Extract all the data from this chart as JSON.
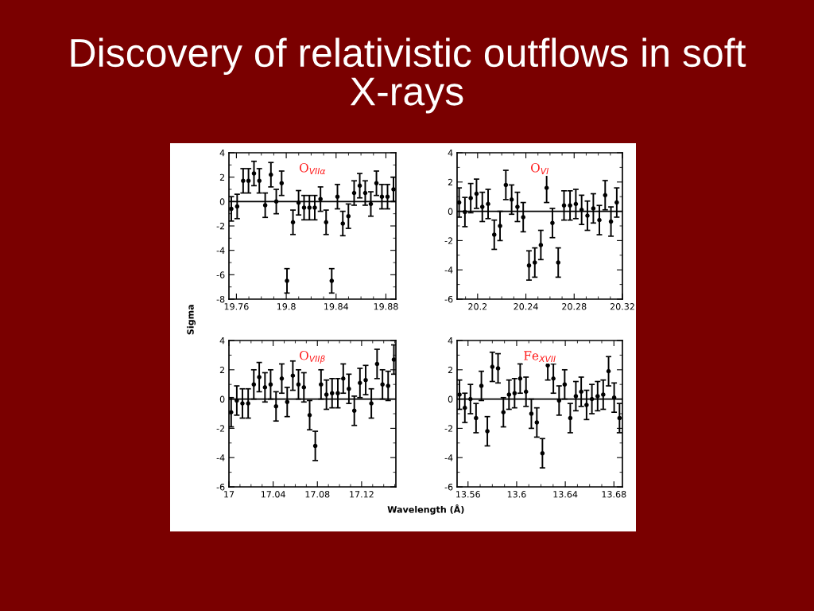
{
  "chart_data": [
    {
      "type": "scatter",
      "title": "Discovery of relativistic outflows in soft X-rays",
      "ylabel": "Sigma",
      "annotations": [
        "O$_{VIIα}$"
      ],
      "xlim": [
        19.754,
        19.888
      ],
      "xticks": [
        19.76,
        19.8,
        19.84,
        19.88
      ],
      "ylim": [
        -8,
        4
      ],
      "yticks": [
        -8,
        -6,
        -4,
        -2,
        0,
        2,
        4
      ],
      "grid": false,
      "marker": "circle",
      "ref_lines": [
        {
          "axis": "y",
          "value": 0,
          "color": "#000000"
        }
      ],
      "series": [
        {
          "color": "#000000",
          "x": [
            19.7559,
            19.7606,
            19.7654,
            19.7697,
            19.7741,
            19.7784,
            19.7831,
            19.7877,
            19.792,
            19.7963,
            19.8006,
            19.8054,
            19.8099,
            19.8143,
            19.8186,
            19.8229,
            19.8275,
            19.832,
            19.8365,
            19.8411,
            19.8454,
            19.8499,
            19.8545,
            19.859,
            19.8634,
            19.8679,
            19.8724,
            19.8768,
            19.8813,
            19.8861
          ],
          "values": [
            -0.6,
            -0.4,
            1.7,
            1.7,
            2.3,
            1.7,
            -0.3,
            2.2,
            0,
            1.5,
            -6.5,
            -1.7,
            -0.1,
            -0.5,
            -0.5,
            -0.5,
            0.2,
            -1.7,
            -6.5,
            0.4,
            -1.8,
            -1.2,
            0.7,
            1.3,
            0.7,
            -0.2,
            1.5,
            0.4,
            0.4,
            1.0
          ],
          "errors": [
            1,
            1,
            1,
            1,
            1,
            1,
            1,
            1,
            1,
            1,
            1,
            1,
            1,
            1,
            1,
            1,
            1,
            1,
            1,
            1,
            1,
            1,
            1,
            1,
            1,
            1,
            1,
            1,
            1,
            1
          ]
        }
      ]
    },
    {
      "type": "scatter",
      "annotations": [
        "O$_{VI}$"
      ],
      "xlim": [
        20.183,
        20.32
      ],
      "xticks": [
        20.2,
        20.24,
        20.28,
        20.32
      ],
      "ylim": [
        -6,
        4
      ],
      "yticks": [
        -6,
        -4,
        -2,
        0,
        2,
        4
      ],
      "grid": false,
      "marker": "circle",
      "ref_lines": [
        {
          "axis": "y",
          "value": 0,
          "color": "#000000"
        }
      ],
      "series": [
        {
          "color": "#000000",
          "x": [
            20.1847,
            20.1895,
            20.1943,
            20.1991,
            20.2039,
            20.2087,
            20.2138,
            20.2186,
            20.2234,
            20.2282,
            20.233,
            20.2378,
            20.2426,
            20.2474,
            20.2524,
            20.2572,
            20.262,
            20.2668,
            20.2716,
            20.2766,
            20.2814,
            20.2862,
            20.291,
            20.2959,
            20.3009,
            20.3057,
            20.3105,
            20.3153
          ],
          "values": [
            0.6,
            -0.05,
            0.9,
            1.2,
            0.3,
            0.5,
            -1.6,
            -1.0,
            1.8,
            0.8,
            0.3,
            -0.4,
            -3.7,
            -3.5,
            -2.3,
            1.6,
            -0.8,
            -3.5,
            0.4,
            0.4,
            0.5,
            0.1,
            -0.3,
            0.2,
            -0.6,
            1.1,
            -0.7,
            0.6
          ],
          "errors": [
            1,
            1,
            1,
            1,
            1,
            1,
            1,
            1,
            1,
            1,
            1,
            1,
            1,
            1,
            1,
            1,
            1,
            1,
            1,
            1,
            1,
            1,
            1,
            1,
            1,
            1,
            1,
            1
          ]
        }
      ]
    },
    {
      "type": "scatter",
      "xlabel": "Wavelength (Å)",
      "annotations": [
        "O$_{VIIβ}$"
      ],
      "xlim": [
        17,
        17.151
      ],
      "xticks": [
        17,
        17.04,
        17.08,
        17.12
      ],
      "ylim": [
        -6,
        4
      ],
      "yticks": [
        -6,
        -4,
        -2,
        0,
        2,
        4
      ],
      "grid": false,
      "marker": "circle",
      "ref_lines": [
        {
          "axis": "y",
          "value": 0,
          "color": "#000000"
        }
      ],
      "series": [
        {
          "color": "#000000",
          "x": [
            17.002,
            17.0071,
            17.0122,
            17.0174,
            17.0225,
            17.0274,
            17.0326,
            17.0377,
            17.0426,
            17.0478,
            17.0527,
            17.0578,
            17.0629,
            17.0678,
            17.073,
            17.0781,
            17.0833,
            17.0882,
            17.0933,
            17.0985,
            17.1034,
            17.1085,
            17.1134,
            17.1185,
            17.1237,
            17.1288,
            17.134,
            17.1389,
            17.144,
            17.1492
          ],
          "values": [
            -0.9,
            -0.1,
            -0.3,
            -0.3,
            1.0,
            1.5,
            0.8,
            1.0,
            -0.5,
            1.4,
            -0.2,
            1.6,
            1.0,
            0.8,
            -1.1,
            -3.2,
            1.0,
            0.3,
            0.4,
            0.4,
            1.4,
            0.7,
            -0.8,
            1.1,
            1.3,
            -0.3,
            2.4,
            1.0,
            0.9,
            2.7
          ],
          "errors": [
            1,
            1,
            1,
            1,
            1,
            1,
            1,
            1,
            1,
            1,
            1,
            1,
            1,
            1,
            1,
            1,
            1,
            1,
            1,
            1,
            1,
            1,
            1,
            1,
            1,
            1,
            1,
            1,
            1,
            1
          ]
        }
      ]
    },
    {
      "type": "scatter",
      "annotations": [
        "Fe$_{XVII}$"
      ],
      "xlim": [
        13.551,
        13.687
      ],
      "xticks": [
        13.56,
        13.6,
        13.64,
        13.68
      ],
      "ylim": [
        -6,
        4
      ],
      "yticks": [
        -6,
        -4,
        -2,
        0,
        2,
        4
      ],
      "grid": false,
      "marker": "circle",
      "ref_lines": [
        {
          "axis": "y",
          "value": 0,
          "color": "#000000"
        }
      ],
      "series": [
        {
          "color": "#000000",
          "x": [
            13.553,
            13.5574,
            13.562,
            13.5666,
            13.571,
            13.5759,
            13.58,
            13.5847,
            13.5891,
            13.5937,
            13.5983,
            13.6029,
            13.6077,
            13.6121,
            13.6166,
            13.6212,
            13.6256,
            13.6302,
            13.6349,
            13.6395,
            13.6441,
            13.6487,
            13.6531,
            13.6575,
            13.6619,
            13.6666,
            13.6712,
            13.6756,
            13.6802,
            13.6846
          ],
          "values": [
            0.3,
            -0.6,
            0,
            -1.3,
            0.9,
            -2.2,
            2.2,
            2.1,
            -0.9,
            0.3,
            0.4,
            1.4,
            0.5,
            -1.0,
            -1.6,
            -3.7,
            2.3,
            1.4,
            -0.1,
            1.0,
            -1.3,
            0.2,
            0.5,
            -0.4,
            0.0,
            0.2,
            0.3,
            1.9,
            0.1,
            -1.3
          ],
          "errors": [
            1,
            1,
            1,
            1,
            1,
            1,
            1,
            1,
            1,
            1,
            1,
            1,
            1,
            1,
            1,
            1,
            1,
            1,
            1,
            1,
            1,
            1,
            1,
            1,
            1,
            1,
            1,
            1,
            1,
            1
          ]
        }
      ]
    }
  ]
}
